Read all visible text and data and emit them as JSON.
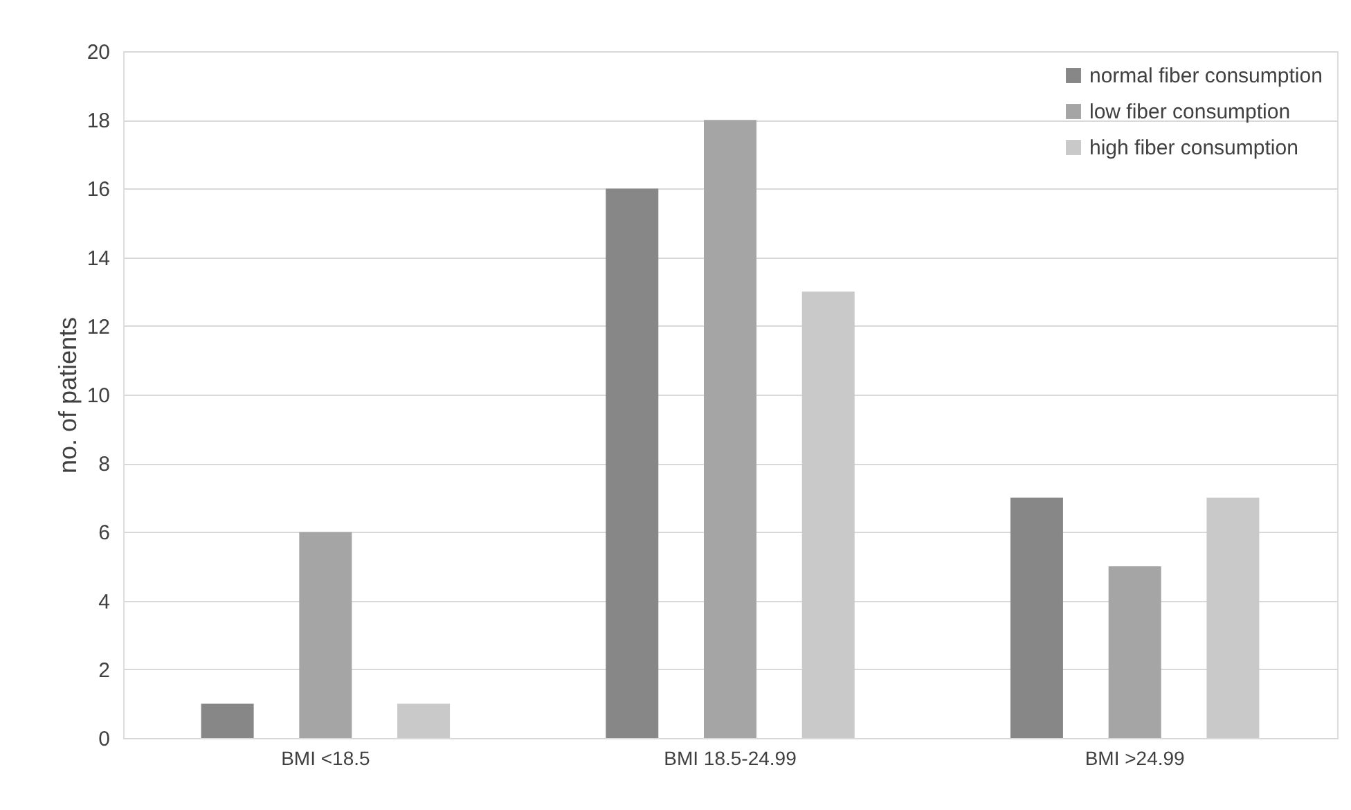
{
  "chart_data": {
    "type": "bar",
    "ylabel": "no. of patients",
    "categories": [
      "BMI <18.5",
      "BMI 18.5-24.99",
      "BMI >24.99"
    ],
    "series": [
      {
        "name": "normal fiber consumption",
        "color": "#878787",
        "values": [
          1,
          16,
          7
        ]
      },
      {
        "name": "low fiber consumption",
        "color": "#a5a5a5",
        "values": [
          6,
          18,
          5
        ]
      },
      {
        "name": "high fiber consumption",
        "color": "#c9c9c9",
        "values": [
          1,
          13,
          7
        ]
      }
    ],
    "ylim": [
      0,
      20
    ],
    "yticks": [
      0,
      2,
      4,
      6,
      8,
      10,
      12,
      14,
      16,
      18,
      20
    ],
    "grid": "y",
    "legend": "top right"
  }
}
